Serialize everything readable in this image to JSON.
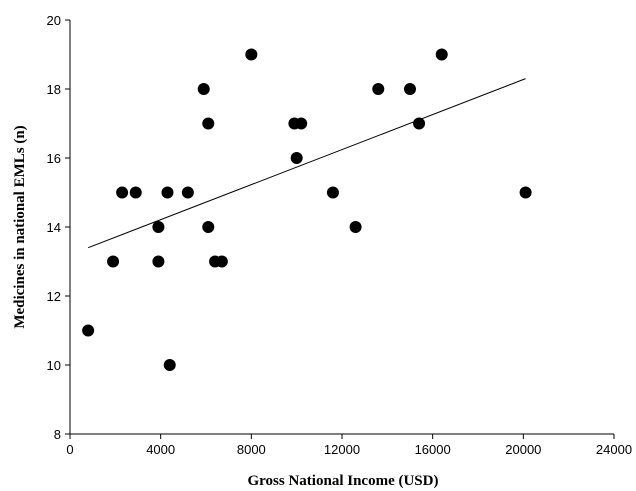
{
  "chart_data": {
    "type": "scatter",
    "title": "",
    "xlabel": "Gross National Income (USD)",
    "ylabel": "Medicines in national EMLs (n)",
    "xlim": [
      0,
      24000
    ],
    "ylim": [
      8,
      20
    ],
    "xticks": [
      0,
      4000,
      8000,
      12000,
      16000,
      20000,
      24000
    ],
    "yticks": [
      8,
      10,
      12,
      14,
      16,
      18,
      20
    ],
    "xtick_labels": [
      "0",
      "4000",
      "8000",
      "12000",
      "16000",
      "20000",
      "24000"
    ],
    "ytick_labels": [
      "8",
      "10",
      "12",
      "14",
      "16",
      "18",
      "20"
    ],
    "grid": false,
    "legend": false,
    "marker_color": "#000000",
    "points": [
      {
        "x": 800,
        "y": 11
      },
      {
        "x": 1900,
        "y": 13
      },
      {
        "x": 2300,
        "y": 15
      },
      {
        "x": 2900,
        "y": 15
      },
      {
        "x": 3900,
        "y": 14
      },
      {
        "x": 3900,
        "y": 13
      },
      {
        "x": 4300,
        "y": 15
      },
      {
        "x": 4400,
        "y": 10
      },
      {
        "x": 5200,
        "y": 15
      },
      {
        "x": 5900,
        "y": 18
      },
      {
        "x": 6100,
        "y": 17
      },
      {
        "x": 6100,
        "y": 14
      },
      {
        "x": 6400,
        "y": 13
      },
      {
        "x": 6700,
        "y": 13
      },
      {
        "x": 8000,
        "y": 19
      },
      {
        "x": 9900,
        "y": 17
      },
      {
        "x": 10000,
        "y": 16
      },
      {
        "x": 10200,
        "y": 17
      },
      {
        "x": 11600,
        "y": 15
      },
      {
        "x": 12600,
        "y": 14
      },
      {
        "x": 13600,
        "y": 18
      },
      {
        "x": 15000,
        "y": 18
      },
      {
        "x": 15400,
        "y": 17
      },
      {
        "x": 16400,
        "y": 19
      },
      {
        "x": 20100,
        "y": 15
      }
    ],
    "trendline": {
      "type": "linear",
      "x": [
        800,
        20100
      ],
      "y": [
        13.4,
        18.3
      ]
    }
  }
}
